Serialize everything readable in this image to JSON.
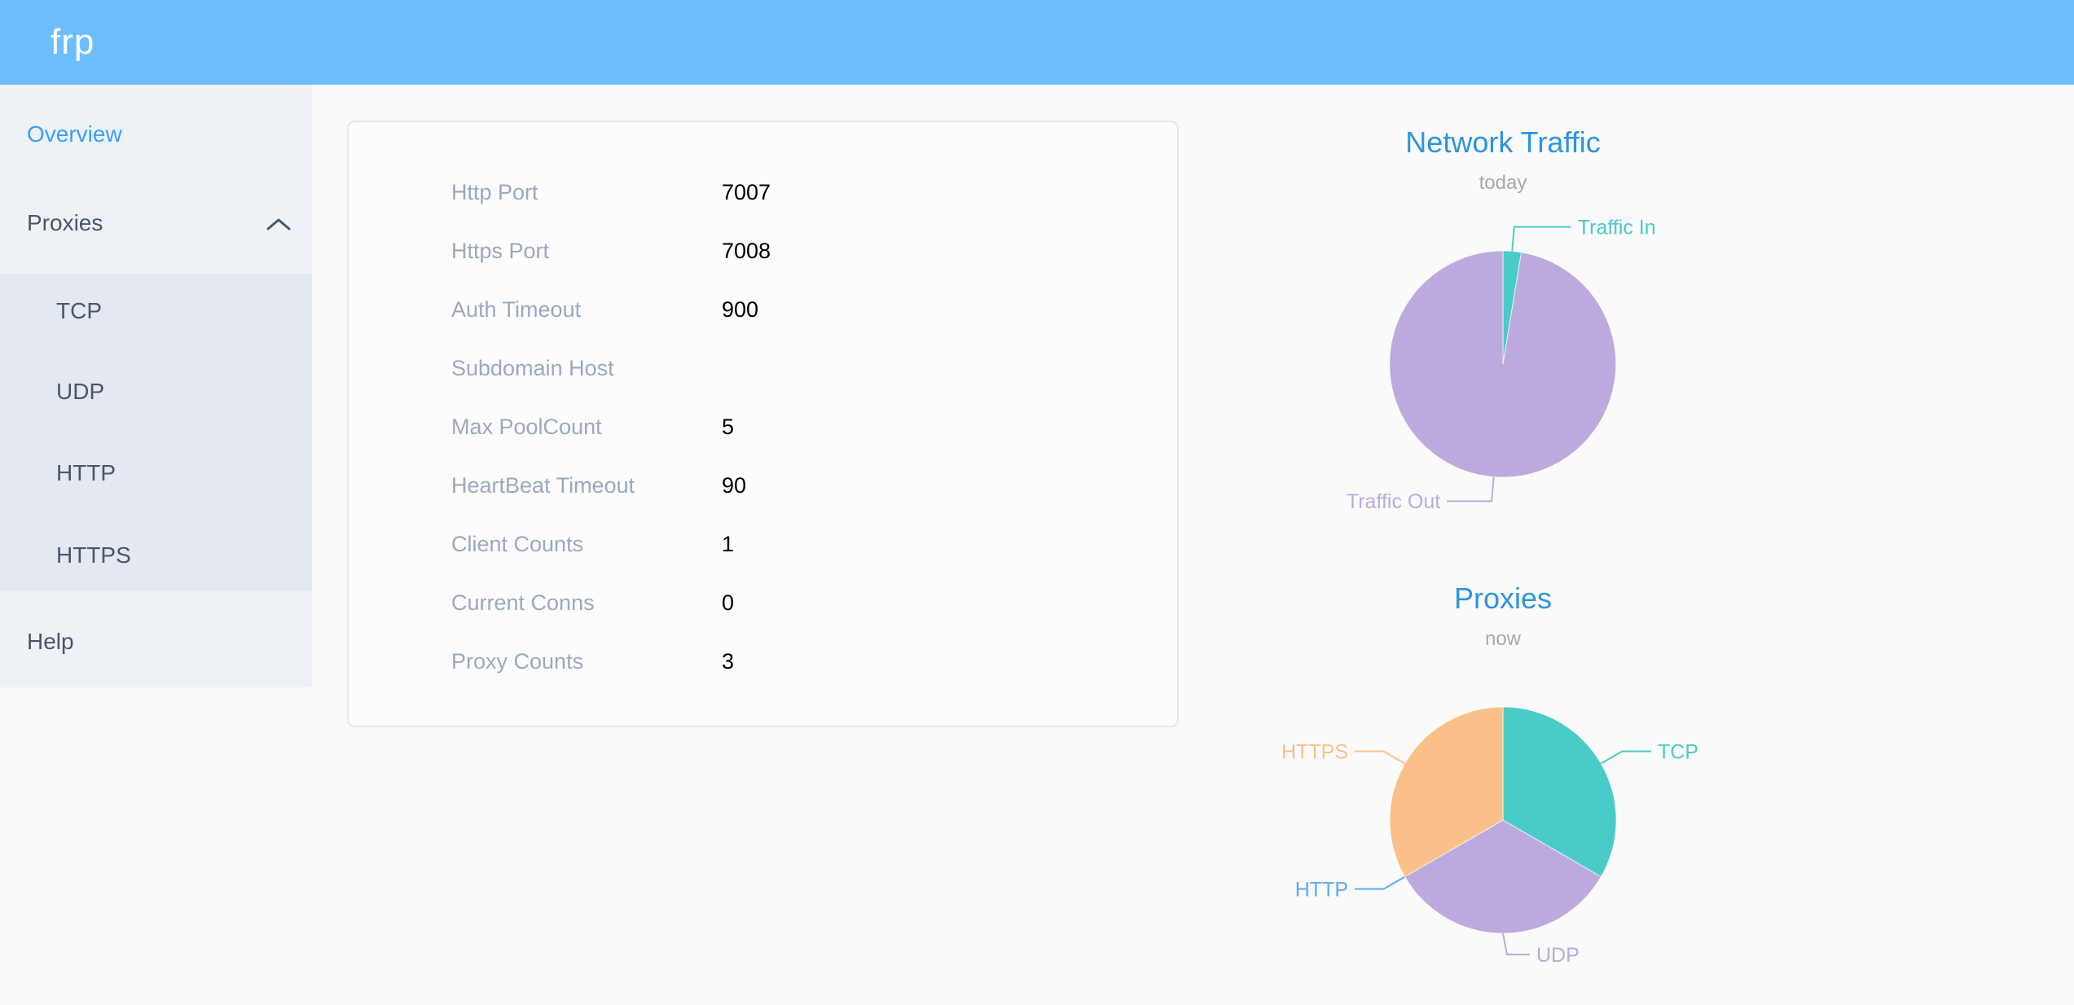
{
  "header": {
    "logo": "frp"
  },
  "sidebar": {
    "items": [
      {
        "label": "Overview",
        "type": "item",
        "active": true
      },
      {
        "label": "Proxies",
        "type": "submenu-header",
        "expanded": true
      },
      {
        "label": "TCP",
        "type": "subitem"
      },
      {
        "label": "UDP",
        "type": "subitem"
      },
      {
        "label": "HTTP",
        "type": "subitem"
      },
      {
        "label": "HTTPS",
        "type": "subitem"
      },
      {
        "label": "Help",
        "type": "item"
      }
    ]
  },
  "server_info": {
    "rows": [
      {
        "label": "Http Port",
        "value": "7007"
      },
      {
        "label": "Https Port",
        "value": "7008"
      },
      {
        "label": "Auth Timeout",
        "value": "900"
      },
      {
        "label": "Subdomain Host",
        "value": ""
      },
      {
        "label": "Max PoolCount",
        "value": "5"
      },
      {
        "label": "HeartBeat Timeout",
        "value": "90"
      },
      {
        "label": "Client Counts",
        "value": "1"
      },
      {
        "label": "Current Conns",
        "value": "0"
      },
      {
        "label": "Proxy Counts",
        "value": "3"
      }
    ]
  },
  "chart_data": [
    {
      "type": "pie",
      "title": "Network Traffic",
      "subtitle": "today",
      "note": "values are percent of circle read from slice angles",
      "slices": [
        {
          "label": "Traffic In",
          "value": 2.6,
          "color": "#49cbc9"
        },
        {
          "label": "Traffic Out",
          "value": 97.4,
          "color": "#bcaade"
        }
      ]
    },
    {
      "type": "pie",
      "title": "Proxies",
      "subtitle": "now",
      "note": "proxy counts by type; HTTP is zero",
      "slices": [
        {
          "label": "TCP",
          "value": 1,
          "color": "#49cbc9"
        },
        {
          "label": "UDP",
          "value": 1,
          "color": "#bcaade"
        },
        {
          "label": "HTTP",
          "value": 0,
          "color": "#5aabee"
        },
        {
          "label": "HTTPS",
          "value": 1,
          "color": "#f9c189"
        }
      ]
    }
  ],
  "colors": {
    "header_bg": "#6cbefc",
    "active_menu_item": "#3a9ffb",
    "menu_text": "#48576a",
    "chart_title_blue": "#2d95dc",
    "chart_subtitle_gray": "#a9a9a9",
    "info_label_gray": "#9aa9bf",
    "info_value_black": "#000000",
    "sidebar_bg": "#eef1f6",
    "submenu_bg": "#e4e8f1",
    "page_bg": "#fafafa",
    "card_border": "#e2e7f5"
  }
}
